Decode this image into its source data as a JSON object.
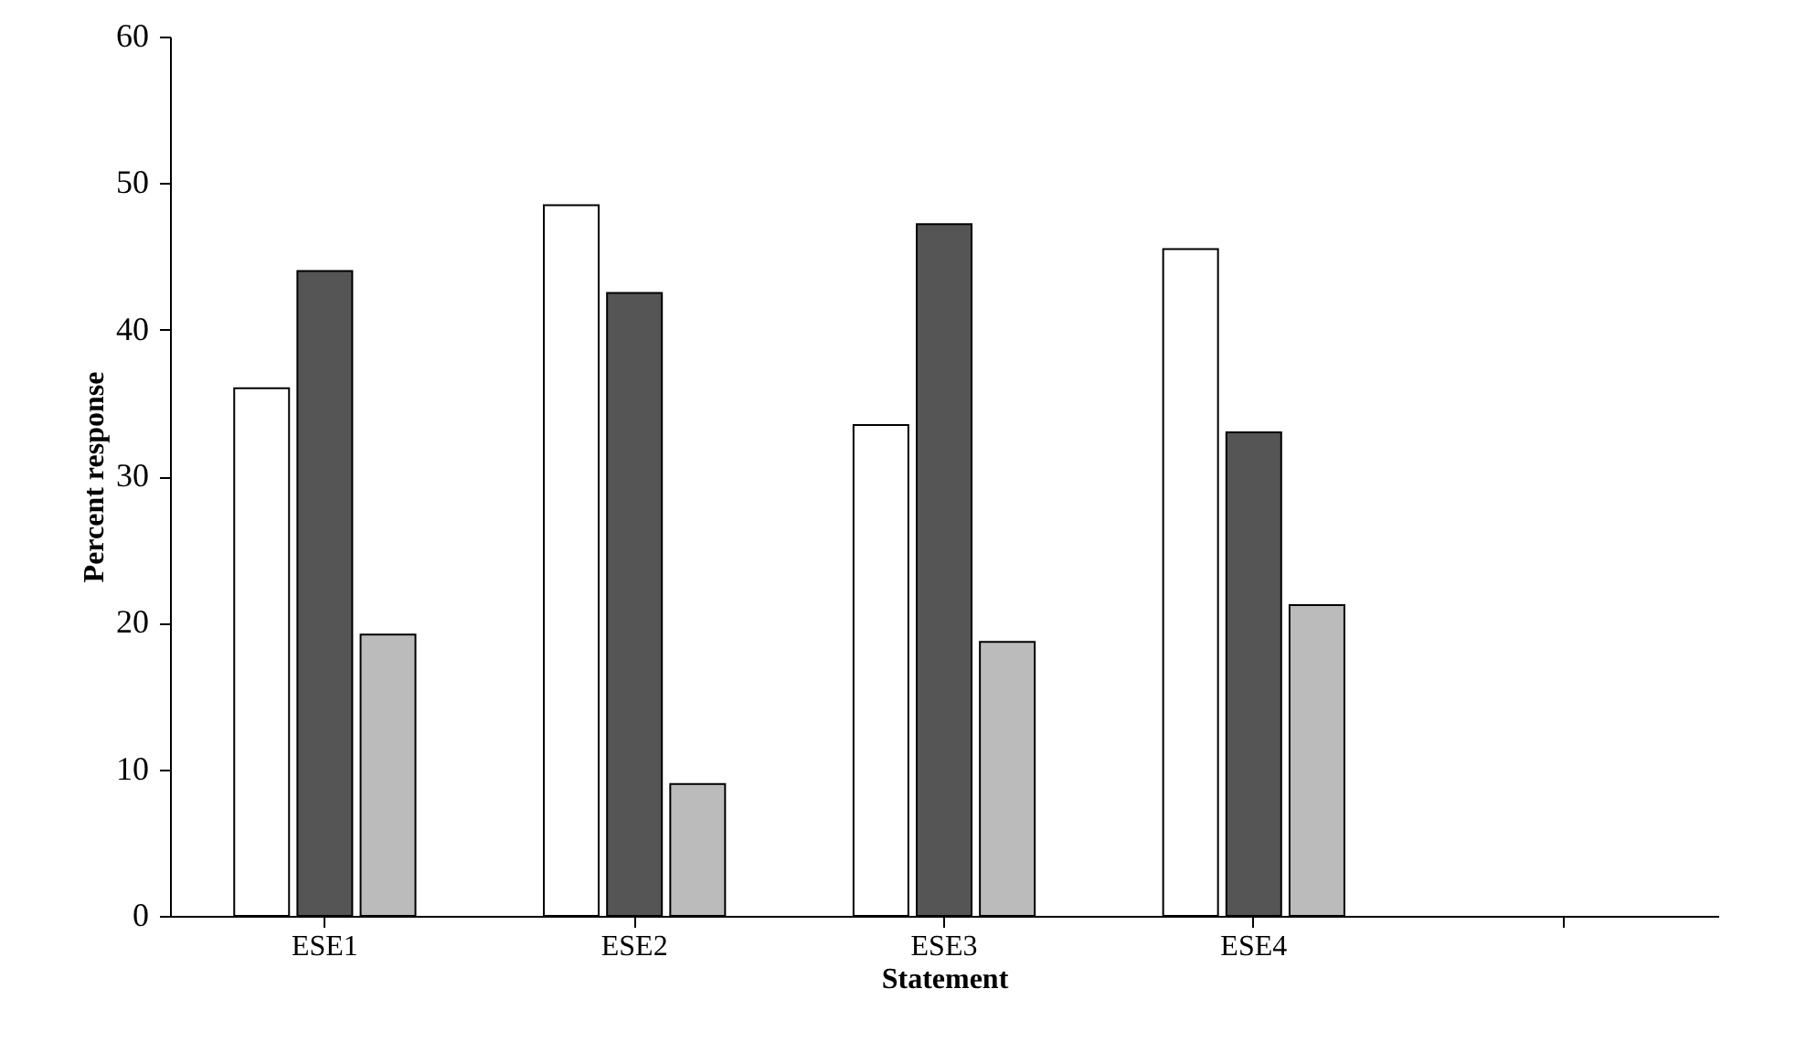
{
  "chart_data": {
    "type": "bar",
    "xlabel": "Statement",
    "ylabel": "Percent response",
    "categories": [
      "ESE1",
      "ESE2",
      "ESE3",
      "ESE4",
      null
    ],
    "series": [
      {
        "color": "#ffffff",
        "values": [
          36,
          48.5,
          33.5,
          45.5,
          null
        ]
      },
      {
        "color": "#555555",
        "values": [
          44,
          42.5,
          47.2,
          33,
          null
        ]
      },
      {
        "color": "#bbbbbb",
        "values": [
          19.2,
          9,
          18.7,
          21.2,
          null
        ]
      }
    ],
    "ylim": [
      0,
      60
    ],
    "yticks": [
      0,
      10,
      20,
      30,
      40,
      50,
      60
    ],
    "grid": false
  }
}
